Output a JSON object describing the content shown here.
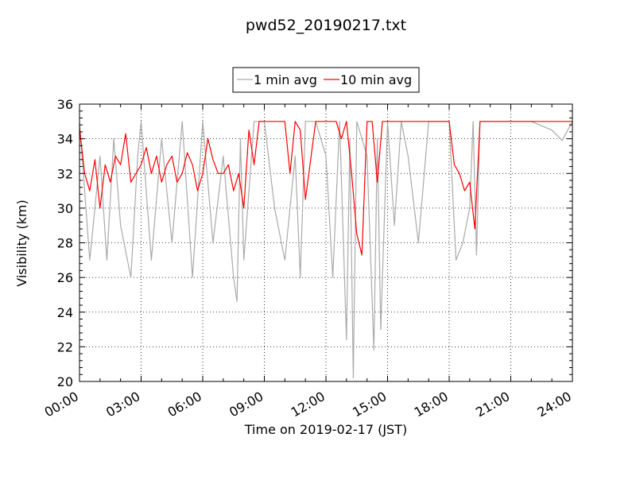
{
  "chart_data": {
    "type": "line",
    "title": "pwd52_20190217.txt",
    "xlabel": "Time on 2019-02-17 (JST)",
    "ylabel": "Visibility (km)",
    "xlim": [
      "00:00",
      "24:00"
    ],
    "ylim": [
      20,
      36
    ],
    "grid": true,
    "legend_placement": "top-center",
    "x_ticks": [
      "00:00",
      "03:00",
      "06:00",
      "09:00",
      "12:00",
      "15:00",
      "18:00",
      "21:00",
      "24:00"
    ],
    "y_ticks": [
      "20",
      "22",
      "24",
      "26",
      "28",
      "30",
      "32",
      "34",
      "36"
    ],
    "colors": {
      "1 min avg": "#aaaaaa",
      "10 min avg": "#ff0000"
    },
    "series": [
      {
        "name": "1 min avg",
        "x": [
          "00:00",
          "00:30",
          "01:00",
          "01:20",
          "01:40",
          "02:00",
          "02:30",
          "02:50",
          "03:00",
          "03:30",
          "04:00",
          "04:30",
          "05:00",
          "05:30",
          "06:00",
          "06:30",
          "07:00",
          "07:30",
          "07:40",
          "07:50",
          "08:00",
          "08:30",
          "09:00",
          "09:30",
          "10:00",
          "10:30",
          "10:45",
          "11:00",
          "11:30",
          "12:00",
          "12:20",
          "12:40",
          "13:00",
          "13:10",
          "13:20",
          "13:30",
          "14:00",
          "14:20",
          "14:30",
          "14:40",
          "15:00",
          "15:20",
          "15:40",
          "16:00",
          "16:30",
          "17:00",
          "17:30",
          "18:00",
          "18:20",
          "18:40",
          "19:00",
          "19:10",
          "19:20",
          "19:30",
          "20:00",
          "21:00",
          "22:00",
          "23:00",
          "23:30",
          "24:00"
        ],
        "y": [
          35,
          27,
          33,
          27,
          34,
          29,
          26,
          33,
          35,
          27,
          34,
          28,
          35,
          26,
          35,
          28,
          33,
          26,
          24.6,
          34,
          27,
          35,
          35,
          30,
          27,
          33,
          26,
          35,
          35,
          33,
          26,
          35,
          22.4,
          34,
          20.2,
          35,
          33,
          21.8,
          34,
          23,
          35,
          29,
          35,
          33,
          28,
          35,
          35,
          35,
          27,
          28,
          30,
          35,
          27.3,
          35,
          35,
          35,
          35,
          34.5,
          33.9,
          35
        ]
      },
      {
        "name": "10 min avg",
        "x": [
          "00:00",
          "00:15",
          "00:30",
          "00:45",
          "01:00",
          "01:15",
          "01:30",
          "01:45",
          "02:00",
          "02:15",
          "02:30",
          "02:45",
          "03:00",
          "03:15",
          "03:30",
          "03:45",
          "04:00",
          "04:15",
          "04:30",
          "04:45",
          "05:00",
          "05:15",
          "05:30",
          "05:45",
          "06:00",
          "06:15",
          "06:30",
          "06:45",
          "07:00",
          "07:15",
          "07:30",
          "07:45",
          "08:00",
          "08:15",
          "08:30",
          "08:45",
          "09:00",
          "09:30",
          "10:00",
          "10:15",
          "10:30",
          "10:45",
          "11:00",
          "11:30",
          "12:00",
          "12:30",
          "12:45",
          "13:00",
          "13:15",
          "13:30",
          "13:45",
          "14:00",
          "14:15",
          "14:30",
          "14:45",
          "15:00",
          "16:00",
          "17:00",
          "18:00",
          "18:15",
          "18:30",
          "18:45",
          "19:00",
          "19:15",
          "19:30",
          "19:45",
          "20:00",
          "21:00",
          "22:00",
          "23:00",
          "24:00"
        ],
        "y": [
          34.6,
          32.0,
          31.0,
          32.8,
          30.0,
          32.5,
          31.5,
          33.0,
          32.5,
          34.3,
          31.5,
          32.0,
          32.5,
          33.5,
          32.0,
          33.0,
          31.5,
          32.5,
          33.0,
          31.5,
          32.0,
          33.2,
          32.5,
          31.0,
          32.0,
          34.0,
          32.8,
          32.0,
          32.0,
          32.5,
          31.0,
          32.0,
          30.0,
          34.5,
          32.5,
          35,
          35,
          35,
          35,
          32.0,
          35,
          34.5,
          30.5,
          35,
          35,
          35,
          34.0,
          35,
          32.0,
          28.5,
          27.3,
          35,
          35,
          31.5,
          35,
          35,
          35,
          35,
          35,
          32.5,
          32.0,
          31.0,
          31.5,
          28.8,
          35,
          35,
          35,
          35,
          35,
          35,
          35
        ]
      }
    ]
  }
}
